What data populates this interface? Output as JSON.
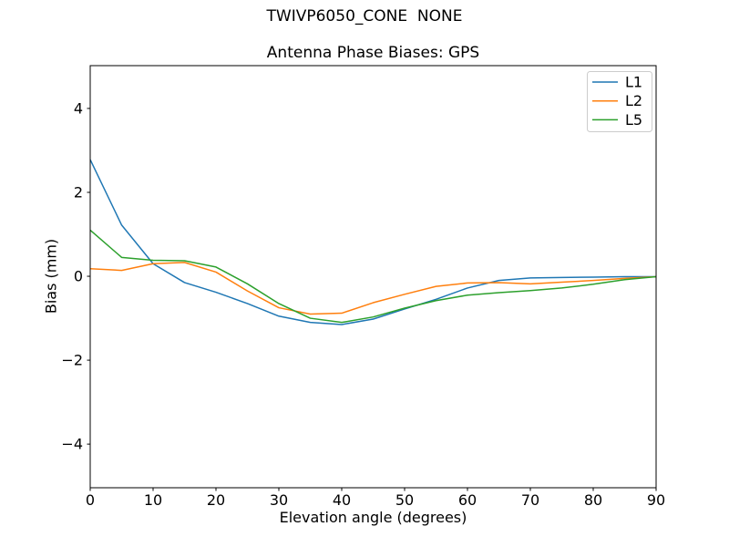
{
  "figure": {
    "suptitle": "TWIVP6050_CONE  NONE",
    "background": "#ffffff",
    "spine_color": "#000000",
    "legend_border_color": "#cccccc"
  },
  "chart_data": {
    "type": "line",
    "suptitle": "TWIVP6050_CONE  NONE",
    "title": "Antenna Phase Biases: GPS",
    "xlabel": "Elevation angle (degrees)",
    "ylabel": "Bias (mm)",
    "xlim": [
      0,
      90
    ],
    "ylim": [
      -5.04,
      5.02
    ],
    "xticks": [
      0,
      10,
      20,
      30,
      40,
      50,
      60,
      70,
      80,
      90
    ],
    "yticks": [
      -4,
      -2,
      0,
      2,
      4
    ],
    "grid": false,
    "legend_position": "upper right",
    "x": [
      0,
      5,
      10,
      15,
      20,
      25,
      30,
      35,
      40,
      45,
      50,
      55,
      60,
      65,
      70,
      75,
      80,
      85,
      90
    ],
    "series": [
      {
        "name": "L1",
        "color": "#1f77b4",
        "values": [
          2.78,
          1.22,
          0.3,
          -0.15,
          -0.38,
          -0.65,
          -0.95,
          -1.1,
          -1.15,
          -1.02,
          -0.78,
          -0.55,
          -0.28,
          -0.1,
          -0.04,
          -0.03,
          -0.02,
          -0.01,
          -0.01
        ]
      },
      {
        "name": "L2",
        "color": "#ff7f0e",
        "values": [
          0.18,
          0.14,
          0.3,
          0.33,
          0.1,
          -0.35,
          -0.75,
          -0.9,
          -0.88,
          -0.63,
          -0.43,
          -0.24,
          -0.16,
          -0.15,
          -0.18,
          -0.14,
          -0.1,
          -0.05,
          -0.01
        ]
      },
      {
        "name": "L5",
        "color": "#2ca02c",
        "values": [
          1.1,
          0.45,
          0.38,
          0.37,
          0.22,
          -0.18,
          -0.65,
          -1.0,
          -1.1,
          -0.97,
          -0.76,
          -0.58,
          -0.45,
          -0.39,
          -0.34,
          -0.28,
          -0.19,
          -0.08,
          -0.01
        ]
      }
    ]
  }
}
